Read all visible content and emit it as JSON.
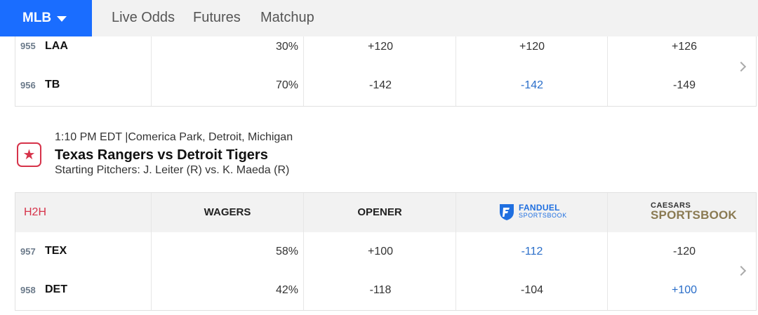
{
  "nav": {
    "league": "MLB",
    "links": [
      "Live Odds",
      "Futures",
      "Matchup"
    ]
  },
  "game1": {
    "rows": [
      {
        "rot": "955",
        "team": "LAA",
        "wagers": "30%",
        "opener": "+120",
        "fanduel": "+120",
        "caesars": "+126"
      },
      {
        "rot": "956",
        "team": "TB",
        "wagers": "70%",
        "opener": "-142",
        "fanduel": "-142",
        "caesars": "-149"
      }
    ]
  },
  "game2": {
    "meta": "1:10 PM EDT |Comerica Park, Detroit, Michigan",
    "title": "Texas Rangers vs Detroit Tigers",
    "pitchers": "Starting Pitchers: J. Leiter (R) vs. K. Maeda (R)",
    "header": {
      "h2h": "H2H",
      "wagers": "WAGERS",
      "opener": "OPENER",
      "fanduel_line1": "FANDUEL",
      "fanduel_line2": "SPORTSBOOK",
      "caesars_line1": "CAESARS",
      "caesars_line2": "SPORTSBOOK"
    },
    "rows": [
      {
        "rot": "957",
        "team": "TEX",
        "wagers": "58%",
        "opener": "+100",
        "fanduel": "-112",
        "caesars": "-120"
      },
      {
        "rot": "958",
        "team": "DET",
        "wagers": "42%",
        "opener": "-118",
        "fanduel": "-104",
        "caesars": "+100"
      }
    ]
  },
  "colors": {
    "accent": "#1a6dff",
    "favorite": "#d6334a",
    "best_line": "#2a6ec9"
  }
}
